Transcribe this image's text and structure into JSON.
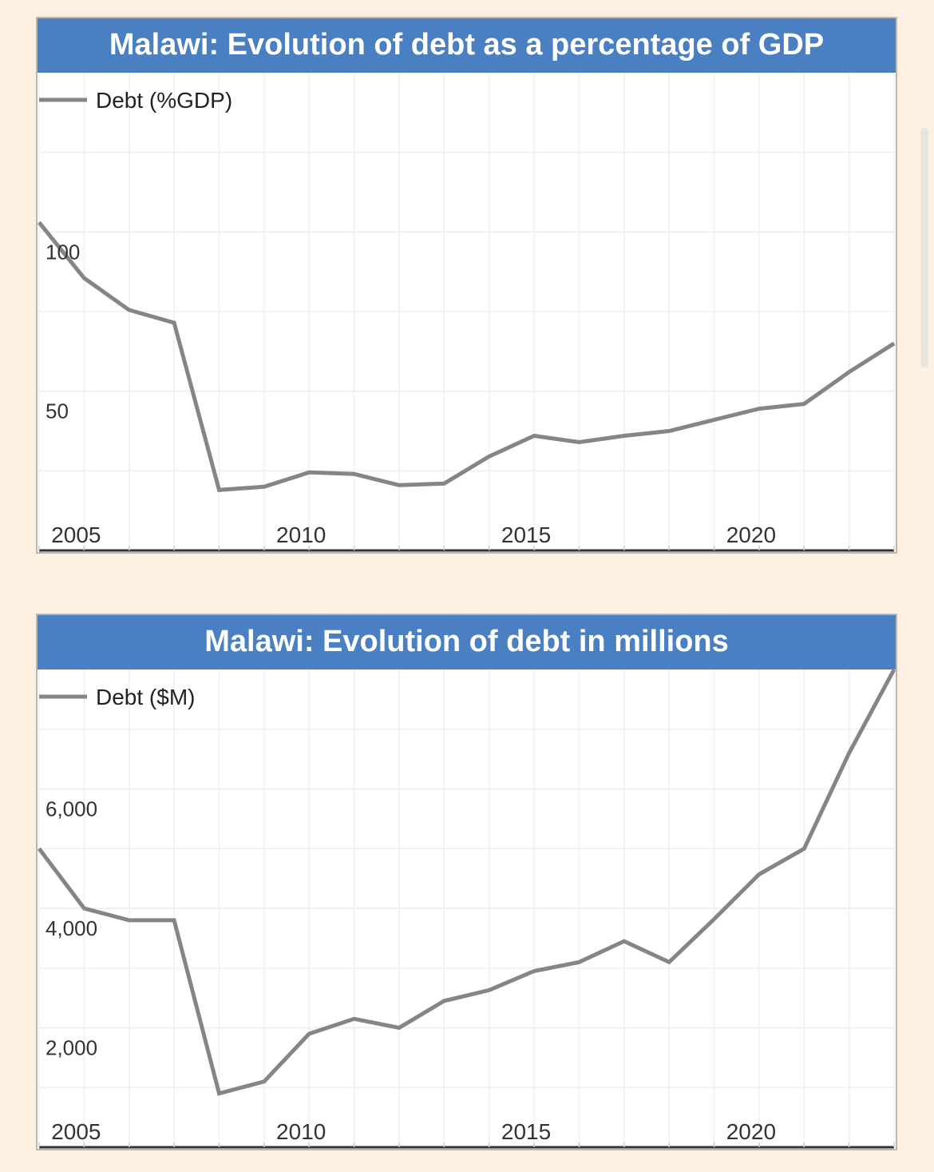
{
  "chart_data": [
    {
      "type": "line",
      "title": "Malawi: Evolution of debt as a percentage of GDP",
      "legend": "Debt (%GDP)",
      "legend_position": "top-left",
      "x": [
        2004,
        2005,
        2006,
        2007,
        2008,
        2009,
        2010,
        2011,
        2012,
        2013,
        2014,
        2015,
        2016,
        2017,
        2018,
        2019,
        2020,
        2021,
        2022,
        2023
      ],
      "series": [
        {
          "name": "Debt (%GDP)",
          "values": [
            103.0,
            85.5,
            75.5,
            71.5,
            19.0,
            20.0,
            24.5,
            24.0,
            20.5,
            21.0,
            29.5,
            36.0,
            34.0,
            36.0,
            37.5,
            41.0,
            44.5,
            46.0,
            56.0,
            65.0
          ]
        }
      ],
      "y_ticks": [
        {
          "value": 50,
          "label": "50"
        },
        {
          "value": 100,
          "label": "100"
        }
      ],
      "x_ticks": [
        {
          "value": 2005,
          "label": "2005"
        },
        {
          "value": 2010,
          "label": "2010"
        },
        {
          "value": 2015,
          "label": "2015"
        },
        {
          "value": 2020,
          "label": "2020"
        }
      ],
      "xlim": [
        2004,
        2023
      ],
      "ylim": [
        0,
        150
      ],
      "grid": true,
      "line_color": "#858585"
    },
    {
      "type": "line",
      "title": "Malawi: Evolution of debt in millions",
      "legend": "Debt ($M)",
      "legend_position": "top-left",
      "x": [
        2004,
        2005,
        2006,
        2007,
        2008,
        2009,
        2010,
        2011,
        2012,
        2013,
        2014,
        2015,
        2016,
        2017,
        2018,
        2019,
        2020,
        2021,
        2022,
        2023
      ],
      "series": [
        {
          "name": "Debt ($M)",
          "values": [
            5000,
            4000,
            3800,
            3800,
            900,
            1100,
            1900,
            2150,
            2000,
            2450,
            2630,
            2950,
            3100,
            3450,
            3100,
            3820,
            4570,
            5000,
            6600,
            8000
          ]
        }
      ],
      "y_ticks": [
        {
          "value": 2000,
          "label": "2,000"
        },
        {
          "value": 4000,
          "label": "4,000"
        },
        {
          "value": 6000,
          "label": "6,000"
        }
      ],
      "x_ticks": [
        {
          "value": 2005,
          "label": "2005"
        },
        {
          "value": 2010,
          "label": "2010"
        },
        {
          "value": 2015,
          "label": "2015"
        },
        {
          "value": 2020,
          "label": "2020"
        }
      ],
      "xlim": [
        2004,
        2023
      ],
      "ylim": [
        0,
        8000
      ],
      "grid": true,
      "line_color": "#858585"
    }
  ],
  "colors": {
    "background": "#fdf0e1",
    "title_bar": "#4a7fc1",
    "title_text": "#ffffff",
    "line": "#858585",
    "axis": "#333333",
    "grid": "#f0f0f0"
  }
}
